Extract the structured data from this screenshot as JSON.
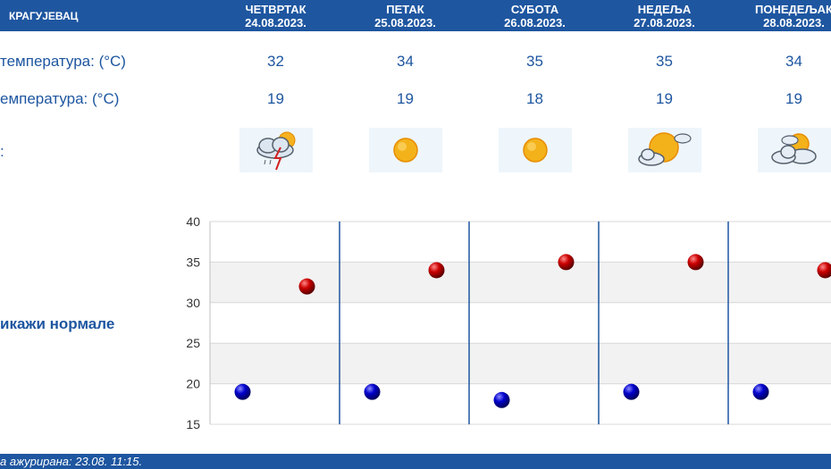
{
  "header": {
    "city": "КРАГУЈЕВАЦ"
  },
  "days": [
    {
      "name": "ЧЕТВРТАК",
      "date": "24.08.2023.",
      "tmax": "32",
      "tmin": "19",
      "icon": "storm-sun-icon"
    },
    {
      "name": "ПЕТАК",
      "date": "25.08.2023.",
      "tmax": "34",
      "tmin": "19",
      "icon": "sun-icon"
    },
    {
      "name": "СУБОТА",
      "date": "26.08.2023.",
      "tmax": "35",
      "tmin": "18",
      "icon": "sun-icon"
    },
    {
      "name": "НЕДЕЉА",
      "date": "27.08.2023.",
      "tmax": "35",
      "tmin": "19",
      "icon": "partly-cloudy-icon"
    },
    {
      "name": "ПОНЕДЕЉАК",
      "date": "28.08.2023.",
      "tmax": "34",
      "tmin": "19",
      "icon": "mostly-cloudy-icon"
    }
  ],
  "labels": {
    "max": "температура: (°C)",
    "min": "емпература: (°C)",
    "weather": ":"
  },
  "toggle": "икажи нормале",
  "footer": "а ажурирана:  23.08.  11:15.",
  "colors": {
    "brand": "#1e56a0",
    "max_dot": "#cc0000",
    "min_dot": "#0000cc"
  },
  "chart_data": {
    "type": "scatter",
    "categories": [
      "24.08.2023.",
      "25.08.2023.",
      "26.08.2023.",
      "27.08.2023.",
      "28.08.2023."
    ],
    "series": [
      {
        "values": [
          32,
          34,
          35,
          35,
          34
        ]
      },
      {
        "values": [
          19,
          19,
          18,
          19,
          19
        ]
      }
    ],
    "yticks": [
      40,
      35,
      30,
      25,
      20,
      15
    ],
    "ylim": [
      15,
      40
    ],
    "grid": true,
    "banded": true
  }
}
